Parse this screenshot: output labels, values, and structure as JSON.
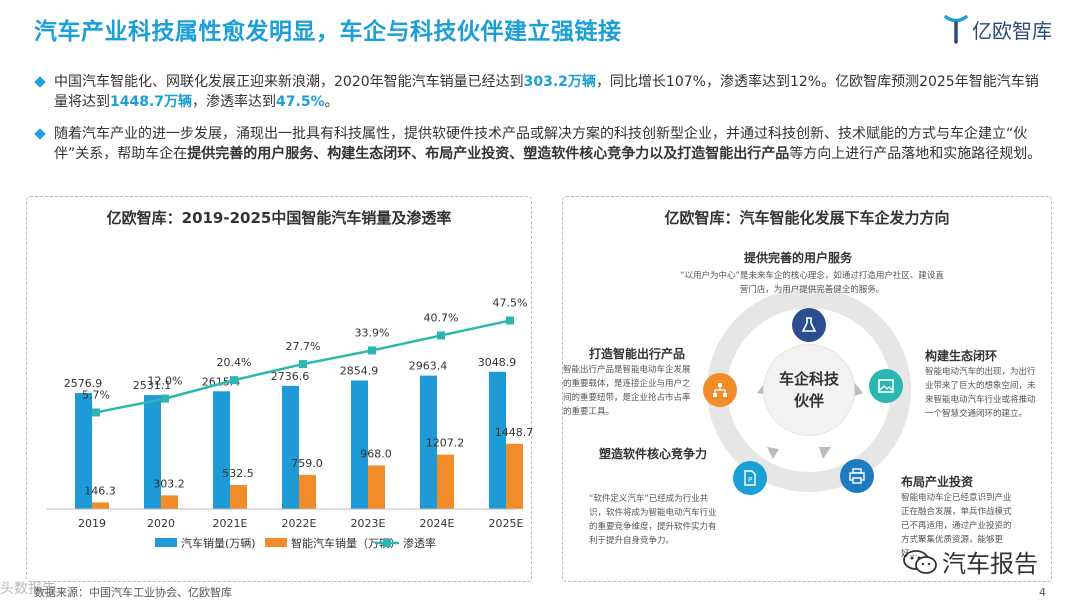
{
  "header": {
    "title": "汽车产业科技属性愈发明显，车企与科技伙伴建立强链接",
    "logo_text": "亿欧智库"
  },
  "bullets": {
    "b1": {
      "t1": "中国汽车智能化、网联化发展正迎来新浪潮，2020年智能汽车销量已经达到",
      "h1": "303.2万辆",
      "t2": "，同比增长107%，渗透率达到12%。亿欧智库预测2025年智能汽车销量将达到",
      "h2": "1448.7万辆",
      "t3": "，渗透率达到",
      "h3": "47.5%",
      "t4": "。"
    },
    "b2": {
      "t1": "随着汽车产业的进一步发展，涌现出一批具有科技属性，提供软硬件技术产品或解决方案的科技创新型企业，并通过科技创新、技术赋能的方式与车企建立“伙伴”关系，帮助车企在",
      "b1": "提供完善的用户服务、构建生态闭环、布局产业投资、塑造软件核心竞争力以及打造智能出行产品",
      "t2": "等方向上进行产品落地和实施路径规划。"
    }
  },
  "chart_data": {
    "type": "bar",
    "title": "亿欧智库：2019-2025中国智能汽车销量及渗透率",
    "categories": [
      "2019",
      "2020",
      "2021E",
      "2022E",
      "2023E",
      "2024E",
      "2025E"
    ],
    "series": [
      {
        "name": "汽车销量(万辆)",
        "type": "bar",
        "color": "#1e9ad6",
        "values": [
          2576.9,
          2531.1,
          2615.4,
          2736.6,
          2854.9,
          2963.4,
          3048.9
        ]
      },
      {
        "name": "智能汽车销量（万辆）",
        "type": "bar",
        "color": "#f28c28",
        "values": [
          146.3,
          303.2,
          532.5,
          759.0,
          968.0,
          1207.2,
          1448.7
        ]
      },
      {
        "name": "渗透率",
        "type": "line",
        "color": "#2bb7b0",
        "values": [
          5.7,
          12.0,
          20.4,
          27.7,
          33.9,
          40.7,
          47.5
        ]
      }
    ],
    "total_labels": [
      "2576.9",
      "2531.1",
      "2615.4",
      "2736.6",
      "2854.9",
      "2963.4",
      "3048.9"
    ],
    "smart_labels": [
      "146.3",
      "303.2",
      "532.5",
      "759.0",
      "968.0",
      "1207.2",
      "1448.7"
    ],
    "rate_labels": [
      "5.7%",
      "12.0%",
      "20.4%",
      "27.7%",
      "33.9%",
      "40.7%",
      "47.5%"
    ],
    "ylim_bar": [
      0,
      4000
    ],
    "ylim_rate": [
      0,
      100
    ]
  },
  "right_panel": {
    "title": "亿欧智库：汽车智能化发展下车企发力方向",
    "center": "车企科技伙伴",
    "sections": {
      "top": {
        "title": "提供完善的用户服务",
        "text": "“以用户为中心”是未来车企的核心理念，如通过打造用户社区、建设直营门店，为用户提供完善健全的服务。"
      },
      "right": {
        "title": "构建生态闭环",
        "text": "智能电动汽车的出现，为出行业带来了巨大的想象空间，未来智能电动汽车行业或将推动一个智慧交通闭环的建立。"
      },
      "bottom_right": {
        "title": "布局产业投资",
        "text": "智能电动车企已经意识到产业正在融合发展，单兵作战模式已不再适用，通过产业投资的方式聚集优质资源，能够更好..."
      },
      "bottom_left": {
        "title": "塑造软件核心竞争力",
        "text": "“软件定义汽车”已经成为行业共识，软件将成为智能电动汽车行业的重要竞争维度，提升软件实力有利于提升自身竞争力。"
      },
      "left": {
        "title": "打造智能出行产品",
        "text": "智能出行产品是智能电动车企发展的重要载体，是连接企业与用户之间的重要纽带，是企业抢占市占率的重要工具。"
      }
    }
  },
  "footer": {
    "source": "数据来源：中国汽车工业协会、亿欧智库",
    "page": "4",
    "watermark_right": "汽车报告",
    "watermark_left": "头数报告"
  }
}
